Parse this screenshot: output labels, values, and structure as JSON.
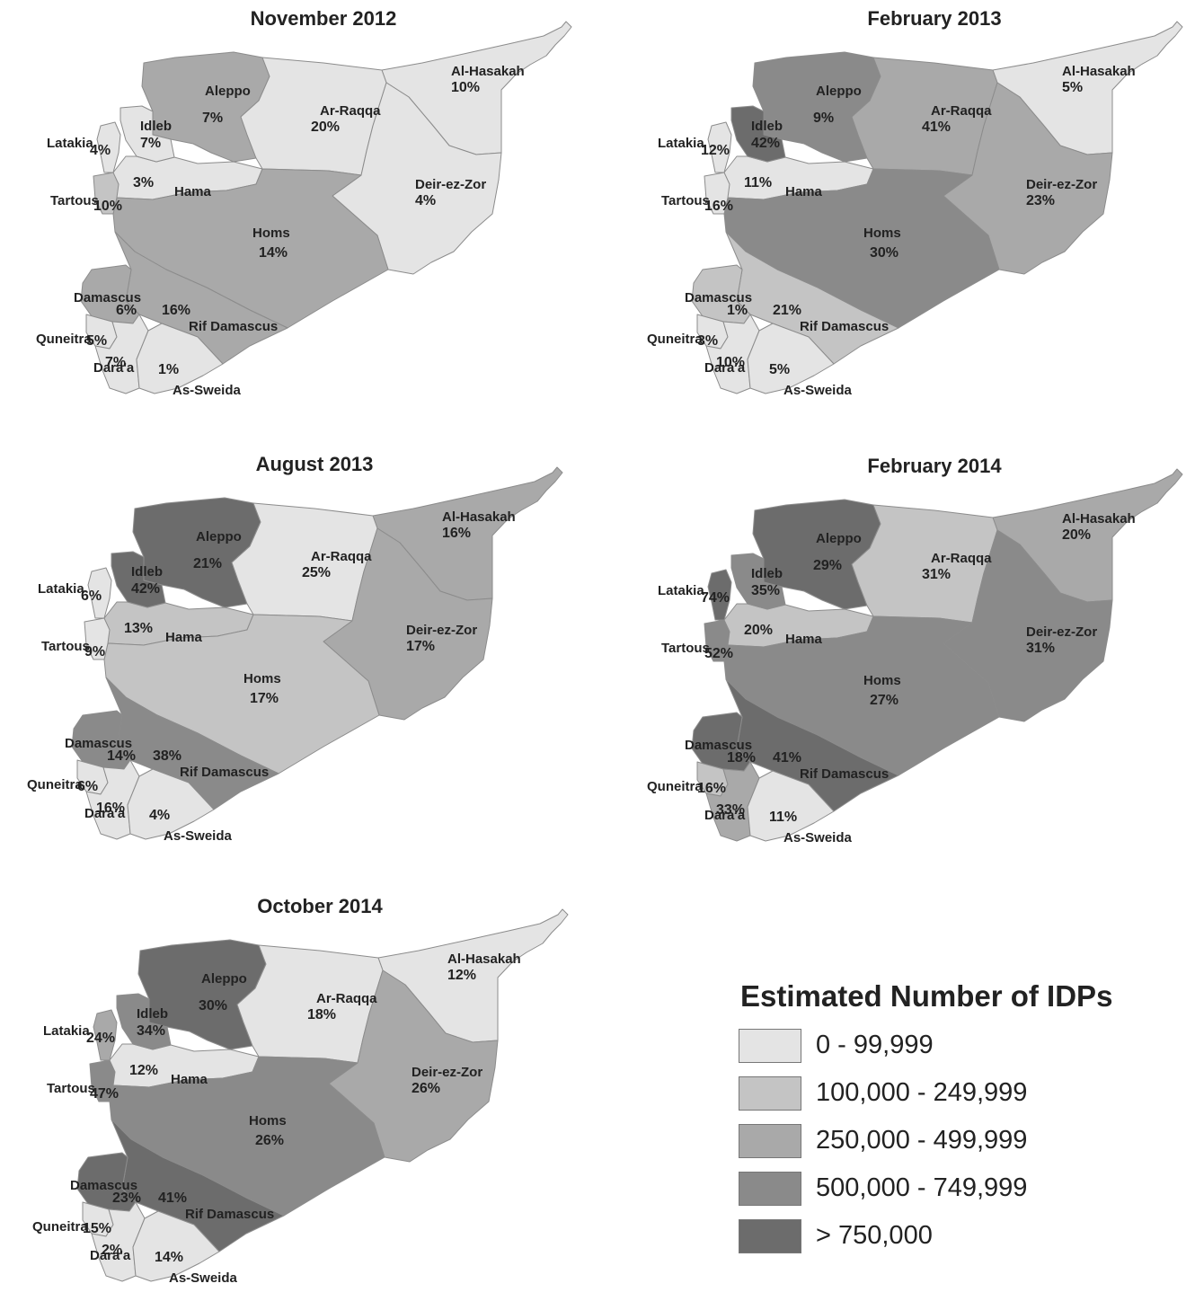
{
  "colors": {
    "class_0": "#e4e4e4",
    "class_1": "#c4c4c4",
    "class_2": "#a9a9a9",
    "class_3": "#8a8a8a",
    "class_4": "#6c6c6c",
    "border": "#8c8c8c"
  },
  "legend": {
    "title": "Estimated Number of IDPs",
    "items": [
      {
        "label": "0 - 99,999",
        "class": "class_0"
      },
      {
        "label": "100,000 - 249,999",
        "class": "class_1"
      },
      {
        "label": "250,000 - 499,999",
        "class": "class_2"
      },
      {
        "label": "500,000 - 749,999",
        "class": "class_3"
      },
      {
        "label": "> 750,000",
        "class": "class_4"
      }
    ]
  },
  "maps": [
    {
      "title": "November 2012",
      "regions": {
        "Al-Hasakah": {
          "label": "Al-Hasakah",
          "value": "10%",
          "class": "class_0"
        },
        "Aleppo": {
          "label": "Aleppo",
          "value": "7%",
          "class": "class_2"
        },
        "Ar-Raqqa": {
          "label": "Ar-Raqqa",
          "value": "20%",
          "class": "class_0"
        },
        "Idleb": {
          "label": "Idleb",
          "value": "7%",
          "class": "class_0"
        },
        "Latakia": {
          "label": "Latakia",
          "value": "4%",
          "class": "class_0"
        },
        "Tartous": {
          "label": "Tartous",
          "value": "10%",
          "class": "class_1"
        },
        "Hama": {
          "label": "Hama",
          "value": "3%",
          "class": "class_0"
        },
        "Deir-ez-Zor": {
          "label": "Deir-ez-Zor",
          "value": "4%",
          "class": "class_0"
        },
        "Homs": {
          "label": "Homs",
          "value": "14%",
          "class": "class_2"
        },
        "Damascus": {
          "label": "Damascus",
          "value": "6%",
          "class": "class_2"
        },
        "Rif Damascus": {
          "label": "Rif Damascus",
          "value": "16%",
          "class": "class_2"
        },
        "Quneitra": {
          "label": "Quneitra",
          "value": "5%",
          "class": "class_0"
        },
        "Dara'a": {
          "label": "Dara'a",
          "value": "7%",
          "class": "class_0"
        },
        "As-Sweida": {
          "label": "As-Sweida",
          "value": "1%",
          "class": "class_0"
        }
      }
    },
    {
      "title": "February 2013",
      "regions": {
        "Al-Hasakah": {
          "label": "Al-Hasakah",
          "value": "5%",
          "class": "class_0"
        },
        "Aleppo": {
          "label": "Aleppo",
          "value": "9%",
          "class": "class_3"
        },
        "Ar-Raqqa": {
          "label": "Ar-Raqqa",
          "value": "41%",
          "class": "class_2"
        },
        "Idleb": {
          "label": "Idleb",
          "value": "42%",
          "class": "class_4"
        },
        "Latakia": {
          "label": "Latakia",
          "value": "12%",
          "class": "class_0"
        },
        "Tartous": {
          "label": "Tartous",
          "value": "16%",
          "class": "class_0"
        },
        "Hama": {
          "label": "Hama",
          "value": "11%",
          "class": "class_0"
        },
        "Deir-ez-Zor": {
          "label": "Deir-ez-Zor",
          "value": "23%",
          "class": "class_2"
        },
        "Homs": {
          "label": "Homs",
          "value": "30%",
          "class": "class_3"
        },
        "Damascus": {
          "label": "Damascus",
          "value": "1%",
          "class": "class_1"
        },
        "Rif Damascus": {
          "label": "Rif Damascus",
          "value": "21%",
          "class": "class_1"
        },
        "Quneitra": {
          "label": "Quneitra",
          "value": "3%",
          "class": "class_0"
        },
        "Dara'a": {
          "label": "Dara'a",
          "value": "10%",
          "class": "class_0"
        },
        "As-Sweida": {
          "label": "As-Sweida",
          "value": "5%",
          "class": "class_0"
        }
      }
    },
    {
      "title": "August 2013",
      "regions": {
        "Al-Hasakah": {
          "label": "Al-Hasakah",
          "value": "16%",
          "class": "class_2"
        },
        "Aleppo": {
          "label": "Aleppo",
          "value": "21%",
          "class": "class_4"
        },
        "Ar-Raqqa": {
          "label": "Ar-Raqqa",
          "value": "25%",
          "class": "class_0"
        },
        "Idleb": {
          "label": "Idleb",
          "value": "42%",
          "class": "class_4"
        },
        "Latakia": {
          "label": "Latakia",
          "value": "6%",
          "class": "class_0"
        },
        "Tartous": {
          "label": "Tartous",
          "value": "9%",
          "class": "class_0"
        },
        "Hama": {
          "label": "Hama",
          "value": "13%",
          "class": "class_1"
        },
        "Deir-ez-Zor": {
          "label": "Deir-ez-Zor",
          "value": "17%",
          "class": "class_2"
        },
        "Homs": {
          "label": "Homs",
          "value": "17%",
          "class": "class_1"
        },
        "Damascus": {
          "label": "Damascus",
          "value": "14%",
          "class": "class_3"
        },
        "Rif Damascus": {
          "label": "Rif Damascus",
          "value": "38%",
          "class": "class_3"
        },
        "Quneitra": {
          "label": "Quneitra",
          "value": "6%",
          "class": "class_0"
        },
        "Dara'a": {
          "label": "Dara'a",
          "value": "16%",
          "class": "class_0"
        },
        "As-Sweida": {
          "label": "As-Sweida",
          "value": "4%",
          "class": "class_0"
        }
      }
    },
    {
      "title": "February 2014",
      "regions": {
        "Al-Hasakah": {
          "label": "Al-Hasakah",
          "value": "20%",
          "class": "class_2"
        },
        "Aleppo": {
          "label": "Aleppo",
          "value": "29%",
          "class": "class_4"
        },
        "Ar-Raqqa": {
          "label": "Ar-Raqqa",
          "value": "31%",
          "class": "class_1"
        },
        "Idleb": {
          "label": "Idleb",
          "value": "35%",
          "class": "class_3"
        },
        "Latakia": {
          "label": "Latakia",
          "value": "74%",
          "class": "class_4"
        },
        "Tartous": {
          "label": "Tartous",
          "value": "52%",
          "class": "class_3"
        },
        "Hama": {
          "label": "Hama",
          "value": "20%",
          "class": "class_1"
        },
        "Deir-ez-Zor": {
          "label": "Deir-ez-Zor",
          "value": "31%",
          "class": "class_3"
        },
        "Homs": {
          "label": "Homs",
          "value": "27%",
          "class": "class_3"
        },
        "Damascus": {
          "label": "Damascus",
          "value": "18%",
          "class": "class_4"
        },
        "Rif Damascus": {
          "label": "Rif Damascus",
          "value": "41%",
          "class": "class_4"
        },
        "Quneitra": {
          "label": "Quneitra",
          "value": "16%",
          "class": "class_1"
        },
        "Dara'a": {
          "label": "Dara'a",
          "value": "33%",
          "class": "class_2"
        },
        "As-Sweida": {
          "label": "As-Sweida",
          "value": "11%",
          "class": "class_0"
        }
      }
    },
    {
      "title": "October 2014",
      "regions": {
        "Al-Hasakah": {
          "label": "Al-Hasakah",
          "value": "12%",
          "class": "class_0"
        },
        "Aleppo": {
          "label": "Aleppo",
          "value": "30%",
          "class": "class_4"
        },
        "Ar-Raqqa": {
          "label": "Ar-Raqqa",
          "value": "18%",
          "class": "class_0"
        },
        "Idleb": {
          "label": "Idleb",
          "value": "34%",
          "class": "class_3"
        },
        "Latakia": {
          "label": "Latakia",
          "value": "24%",
          "class": "class_2"
        },
        "Tartous": {
          "label": "Tartous",
          "value": "47%",
          "class": "class_3"
        },
        "Hama": {
          "label": "Hama",
          "value": "12%",
          "class": "class_0"
        },
        "Deir-ez-Zor": {
          "label": "Deir-ez-Zor",
          "value": "26%",
          "class": "class_2"
        },
        "Homs": {
          "label": "Homs",
          "value": "26%",
          "class": "class_3"
        },
        "Damascus": {
          "label": "Damascus",
          "value": "23%",
          "class": "class_4"
        },
        "Rif Damascus": {
          "label": "Rif Damascus",
          "value": "41%",
          "class": "class_4"
        },
        "Quneitra": {
          "label": "Quneitra",
          "value": "15%",
          "class": "class_0"
        },
        "Dara'a": {
          "label": "Dara'a",
          "value": "2%",
          "class": "class_0"
        },
        "As-Sweida": {
          "label": "As-Sweida",
          "value": "14%",
          "class": "class_0"
        }
      }
    }
  ]
}
